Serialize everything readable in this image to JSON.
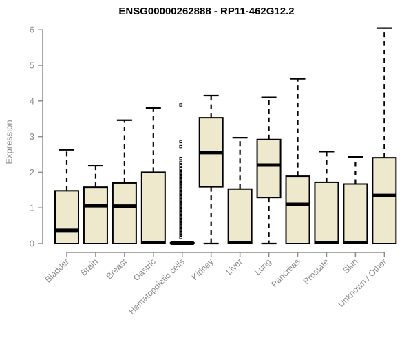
{
  "chart_data": {
    "type": "boxplot",
    "title": "ENSG00000262888 - RP11-462G12.2",
    "ylabel": "Expression",
    "ylim": [
      0,
      6
    ],
    "yticks": [
      0,
      1,
      2,
      3,
      4,
      5,
      6
    ],
    "grid": false,
    "legend": "none",
    "categories": [
      "Bladder",
      "Brain",
      "Breast",
      "Gastric",
      "Hematopoietic cells",
      "Kidney",
      "Liver",
      "Lung",
      "Pancreas",
      "Prostate",
      "Skin",
      "Unknown / Other"
    ],
    "boxes": [
      {
        "category": "Bladder",
        "whisker_low": 0,
        "q1": 0,
        "median": 0.37,
        "q3": 1.48,
        "whisker_high": 2.63,
        "outliers": []
      },
      {
        "category": "Brain",
        "whisker_low": 0,
        "q1": 0,
        "median": 1.06,
        "q3": 1.58,
        "whisker_high": 2.18,
        "outliers": []
      },
      {
        "category": "Breast",
        "whisker_low": 0,
        "q1": 0,
        "median": 1.05,
        "q3": 1.7,
        "whisker_high": 3.46,
        "outliers": []
      },
      {
        "category": "Gastric",
        "whisker_low": 0,
        "q1": 0,
        "median": 0.03,
        "q3": 2.0,
        "whisker_high": 3.8,
        "outliers": []
      },
      {
        "category": "Hematopoietic cells",
        "whisker_low": 0,
        "q1": 0,
        "median": 0.01,
        "q3": 0.02,
        "whisker_high": 0.02,
        "outliers": [
          0.17,
          0.22,
          0.26,
          0.3,
          0.34,
          0.38,
          0.42,
          0.46,
          0.5,
          0.54,
          0.58,
          0.62,
          0.66,
          0.7,
          0.74,
          0.78,
          0.82,
          0.86,
          0.9,
          0.94,
          0.98,
          1.02,
          1.06,
          1.1,
          1.14,
          1.18,
          1.22,
          1.26,
          1.3,
          1.34,
          1.38,
          1.42,
          1.46,
          1.5,
          1.54,
          1.58,
          1.62,
          1.66,
          1.7,
          1.74,
          1.78,
          1.82,
          1.86,
          1.9,
          1.94,
          1.98,
          2.02,
          2.06,
          2.1,
          2.18,
          2.28,
          2.39,
          2.72,
          2.86,
          3.89
        ]
      },
      {
        "category": "Kidney",
        "whisker_low": 0,
        "q1": 1.59,
        "median": 2.55,
        "q3": 3.53,
        "whisker_high": 4.15,
        "outliers": []
      },
      {
        "category": "Liver",
        "whisker_low": 0,
        "q1": 0,
        "median": 0.03,
        "q3": 1.53,
        "whisker_high": 2.97,
        "outliers": []
      },
      {
        "category": "Lung",
        "whisker_low": 0,
        "q1": 1.29,
        "median": 2.2,
        "q3": 2.92,
        "whisker_high": 4.1,
        "outliers": []
      },
      {
        "category": "Pancreas",
        "whisker_low": 0,
        "q1": 0,
        "median": 1.1,
        "q3": 1.89,
        "whisker_high": 4.62,
        "outliers": []
      },
      {
        "category": "Prostate",
        "whisker_low": 0,
        "q1": 0,
        "median": 0.03,
        "q3": 1.72,
        "whisker_high": 2.58,
        "outliers": []
      },
      {
        "category": "Skin",
        "whisker_low": 0,
        "q1": 0,
        "median": 0.03,
        "q3": 1.67,
        "whisker_high": 2.43,
        "outliers": []
      },
      {
        "category": "Unknown / Other",
        "whisker_low": 0,
        "q1": 0,
        "median": 1.35,
        "q3": 2.41,
        "whisker_high": 6.05,
        "outliers": []
      }
    ],
    "colors": {
      "box_fill": "#EEE8CD",
      "box_stroke": "#000000",
      "median": "#000000",
      "whisker": "#000000",
      "axis": "#8c8c8c",
      "tick_label": "#8c8c8c",
      "title": "#000000",
      "background": "#ffffff"
    }
  }
}
